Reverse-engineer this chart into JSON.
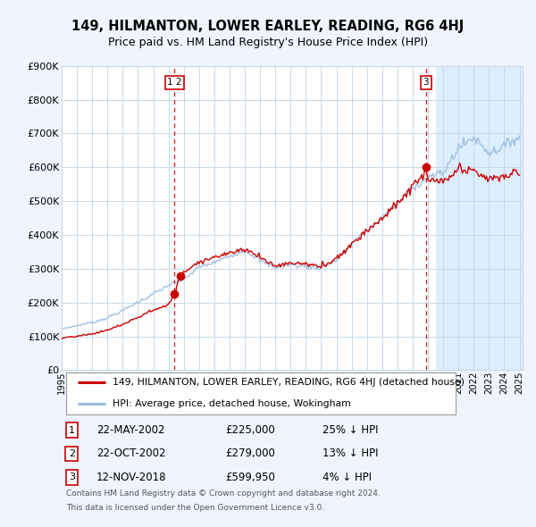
{
  "title": "149, HILMANTON, LOWER EARLEY, READING, RG6 4HJ",
  "subtitle": "Price paid vs. HM Land Registry's House Price Index (HPI)",
  "legend_property": "149, HILMANTON, LOWER EARLEY, READING, RG6 4HJ (detached house)",
  "legend_hpi": "HPI: Average price, detached house, Wokingham",
  "property_color": "#cc0000",
  "hpi_color": "#99bbdd",
  "transaction_color": "#cc0000",
  "vline_color": "#cc0000",
  "ylim": [
    0,
    900000
  ],
  "yticks": [
    0,
    100000,
    200000,
    300000,
    400000,
    500000,
    600000,
    700000,
    800000,
    900000
  ],
  "ytick_labels": [
    "£0",
    "£100K",
    "£200K",
    "£300K",
    "£400K",
    "£500K",
    "£600K",
    "£700K",
    "£800K",
    "£900K"
  ],
  "transactions": [
    {
      "id": "1 2",
      "date_num": 2002.4,
      "price": 225000
    },
    {
      "id": "3",
      "date_num": 2018.87,
      "price": 599950
    }
  ],
  "transaction_dots": [
    {
      "date_num": 2002.38,
      "price": 225000
    },
    {
      "date_num": 2002.81,
      "price": 279000
    },
    {
      "date_num": 2018.87,
      "price": 599950
    }
  ],
  "transaction_table": [
    {
      "num": "1",
      "date": "22-MAY-2002",
      "price": "£225,000",
      "pct": "25% ↓ HPI"
    },
    {
      "num": "2",
      "date": "22-OCT-2002",
      "price": "£279,000",
      "pct": "13% ↓ HPI"
    },
    {
      "num": "3",
      "date": "12-NOV-2018",
      "price": "£599,950",
      "pct": "4% ↓ HPI"
    }
  ],
  "footnote1": "Contains HM Land Registry data © Crown copyright and database right 2024.",
  "footnote2": "This data is licensed under the Open Government Licence v3.0.",
  "background_color": "#f0f4ff",
  "plot_bg_color": "#ffffff",
  "future_bg_color": "#ddeeff",
  "grid_color": "#c8d8e8",
  "future_start": 2019.5,
  "xlim_start": 1995.3,
  "xlim_end": 2025.2
}
